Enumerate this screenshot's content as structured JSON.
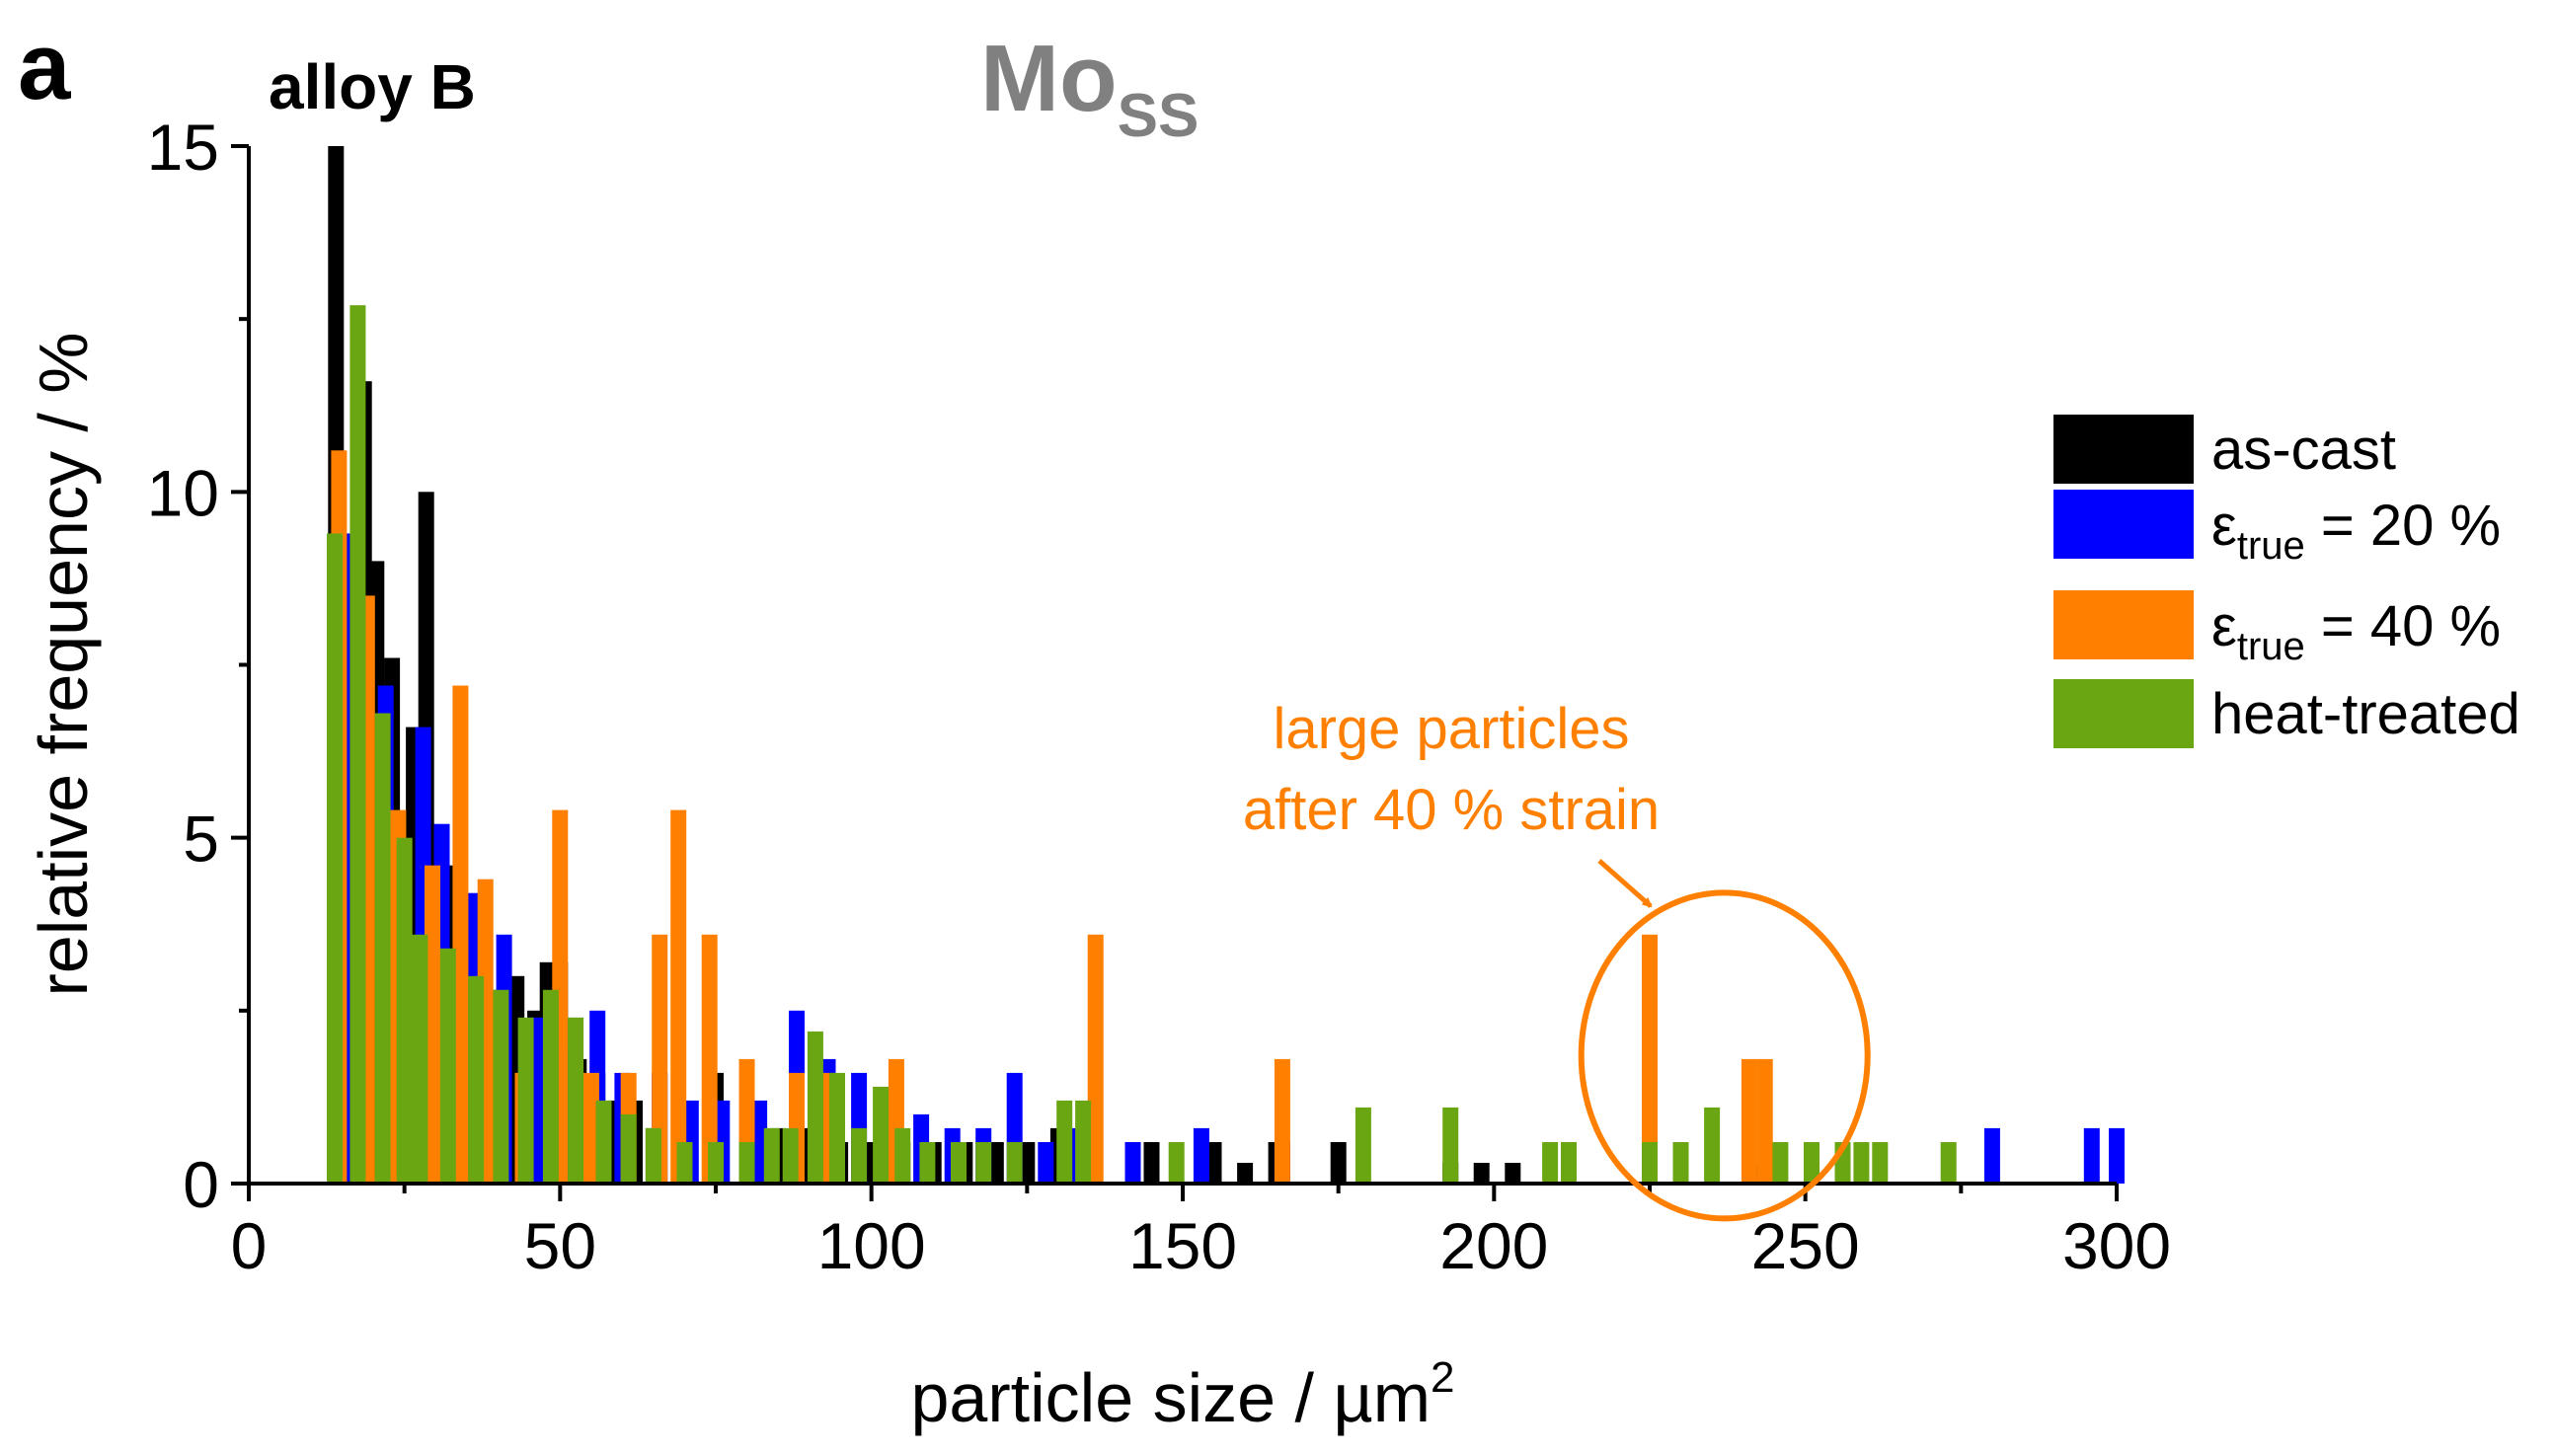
{
  "panel_label": "a",
  "alloy_label": "alloy B",
  "phase_label": {
    "main": "Mo",
    "subscript": "SS"
  },
  "chart_data": {
    "type": "bar",
    "title": "",
    "xlabel": "particle size / µm",
    "xlabel_superscript": "2",
    "ylabel": "relative frequency / %",
    "xlim": [
      0,
      300
    ],
    "ylim": [
      0,
      15
    ],
    "xticks": [
      0,
      50,
      100,
      150,
      200,
      250,
      300
    ],
    "yticks": [
      0,
      5,
      10,
      15
    ],
    "legend_position": "right",
    "series": [
      {
        "name": "as-cast",
        "legend_text": "as-cast",
        "color": "#000000",
        "x": [
          14,
          18.5,
          20.5,
          23,
          25,
          26.5,
          28.5,
          30.5,
          32.5,
          35,
          37,
          40,
          43,
          46,
          48,
          50,
          53,
          56,
          59,
          62,
          65,
          70,
          75,
          80,
          85,
          90,
          95,
          100,
          105,
          110,
          115,
          120,
          125,
          130,
          135,
          145,
          155,
          160,
          165,
          175,
          193,
          198,
          203,
          225,
          243
        ],
        "values": [
          15,
          11.6,
          9,
          7.6,
          5,
          6.6,
          10,
          5,
          4.6,
          3.4,
          3,
          2.8,
          3,
          2.5,
          3.2,
          3.2,
          1.8,
          1.6,
          1.2,
          1.2,
          0.8,
          0.8,
          1.6,
          1,
          0.8,
          0.8,
          0.6,
          0.6,
          0.6,
          0.6,
          0.6,
          0.6,
          0.6,
          0.8,
          0.6,
          0.6,
          0.6,
          0.3,
          0.6,
          0.6,
          0.3,
          0.3,
          0.3,
          0.3,
          0.3
        ]
      },
      {
        "name": "ε_true = 20 %",
        "legend_text": "ε",
        "legend_sub": "true",
        "legend_tail": " = 20 %",
        "color": "#0000ff",
        "x": [
          15,
          22,
          28,
          31,
          36,
          41,
          46,
          51,
          56,
          60,
          66,
          71,
          76,
          82,
          88,
          93,
          98,
          103,
          108,
          113,
          118,
          123,
          128,
          133,
          142,
          153,
          166,
          280,
          296,
          300
        ],
        "values": [
          9.4,
          7.2,
          6.6,
          5.2,
          4.2,
          3.6,
          2.4,
          2,
          2.5,
          1.6,
          1.6,
          1.2,
          1.2,
          1.2,
          2.5,
          1.8,
          1.6,
          1,
          1,
          0.8,
          0.8,
          1.6,
          0.6,
          0.8,
          0.6,
          0.8,
          0.6,
          0.8,
          0.8,
          0.8
        ]
      },
      {
        "name": "ε_true = 40 %",
        "legend_text": "ε",
        "legend_sub": "true",
        "legend_tail": " = 40 %",
        "color": "#ff8000",
        "x": [
          14.5,
          19,
          24,
          29.5,
          34,
          38,
          44,
          50,
          55,
          61,
          66,
          69,
          74,
          80,
          88,
          93,
          104,
          136,
          166,
          225,
          241,
          243.5
        ],
        "values": [
          10.6,
          8.5,
          5.4,
          4.6,
          7.2,
          4.4,
          1.6,
          5.4,
          1.6,
          1.6,
          3.6,
          5.4,
          3.6,
          1.8,
          1.6,
          1.6,
          1.8,
          3.6,
          1.8,
          3.6,
          1.8,
          1.8
        ]
      },
      {
        "name": "heat-treated",
        "legend_text": "heat-treated",
        "color": "#6aa512",
        "x": [
          13.8,
          17.5,
          21.5,
          25,
          27.5,
          32,
          36.5,
          40.5,
          44.5,
          48.5,
          52.5,
          57,
          61,
          65,
          70,
          75,
          80,
          84,
          87,
          91,
          94.5,
          98,
          101.5,
          105,
          109,
          114,
          118,
          123,
          131,
          134,
          149,
          179,
          193,
          209,
          212,
          225,
          230,
          235,
          246,
          251,
          256,
          259,
          262,
          273
        ],
        "values": [
          9.4,
          12.7,
          6.8,
          5,
          3.6,
          3.4,
          3,
          2.8,
          2.4,
          2.8,
          2.4,
          1.2,
          1,
          0.8,
          0.6,
          0.6,
          0.6,
          0.8,
          0.8,
          2.2,
          1.6,
          0.8,
          1.4,
          0.8,
          0.6,
          0.6,
          0.6,
          0.6,
          1.2,
          1.2,
          0.6,
          1.1,
          1.1,
          0.6,
          0.6,
          0.6,
          0.6,
          1.1,
          0.6,
          0.6,
          0.6,
          0.6,
          0.6,
          0.6
        ]
      }
    ],
    "annotation": {
      "line1": "large particles",
      "line2": "after 40 % strain",
      "color": "#ff8000",
      "target_x": 237,
      "target_y": 1.85
    }
  }
}
